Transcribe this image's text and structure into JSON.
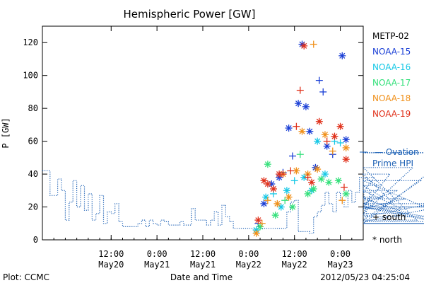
{
  "chart_data": {
    "type": "scatter",
    "title": "Hemispheric Power [GW]",
    "ylabel": "P [GW]",
    "xlabel": "Date and Time",
    "ylim": [
      0,
      130
    ],
    "yticks": [
      0,
      20,
      40,
      60,
      80,
      100,
      120
    ],
    "xlim": [
      "2012-05-19T18:00",
      "2012-05-23T06:00"
    ],
    "xticks": [
      {
        "t": "2012-05-20T12:00",
        "time": "12:00",
        "date": "May20"
      },
      {
        "t": "2012-05-21T00:00",
        "time": "0:00",
        "date": "May21"
      },
      {
        "t": "2012-05-21T12:00",
        "time": "12:00",
        "date": "May21"
      },
      {
        "t": "2012-05-22T00:00",
        "time": "0:00",
        "date": "May22"
      },
      {
        "t": "2012-05-22T12:00",
        "time": "12:00",
        "date": "May22"
      },
      {
        "t": "2012-05-23T00:00",
        "time": "0:00",
        "date": "May23"
      }
    ],
    "series": [
      {
        "name": "METP-02",
        "color": "#000000",
        "points": []
      },
      {
        "name": "NOAA-15",
        "color": "#1a3fd6",
        "points": [
          {
            "t": "2012-05-22T02:30",
            "v": 10,
            "m": "+"
          },
          {
            "t": "2012-05-22T04:00",
            "v": 22,
            "m": "*"
          },
          {
            "t": "2012-05-22T06:00",
            "v": 34,
            "m": "*"
          },
          {
            "t": "2012-05-22T08:00",
            "v": 38,
            "m": "*"
          },
          {
            "t": "2012-05-22T09:00",
            "v": 41,
            "m": "+"
          },
          {
            "t": "2012-05-22T10:30",
            "v": 68,
            "m": "*"
          },
          {
            "t": "2012-05-22T11:30",
            "v": 51,
            "m": "+"
          },
          {
            "t": "2012-05-22T13:00",
            "v": 83,
            "m": "*"
          },
          {
            "t": "2012-05-22T14:00",
            "v": 119,
            "m": "*"
          },
          {
            "t": "2012-05-22T15:00",
            "v": 81,
            "m": "*"
          },
          {
            "t": "2012-05-22T16:00",
            "v": 66,
            "m": "*"
          },
          {
            "t": "2012-05-22T17:30",
            "v": 44,
            "m": "*"
          },
          {
            "t": "2012-05-22T18:30",
            "v": 97,
            "m": "+"
          },
          {
            "t": "2012-05-22T19:30",
            "v": 90,
            "m": "+"
          },
          {
            "t": "2012-05-22T20:30",
            "v": 57,
            "m": "*"
          },
          {
            "t": "2012-05-22T22:00",
            "v": 52,
            "m": "+"
          },
          {
            "t": "2012-05-23T00:30",
            "v": 112,
            "m": "*"
          },
          {
            "t": "2012-05-23T01:30",
            "v": 61,
            "m": "*"
          }
        ]
      },
      {
        "name": "NOAA-16",
        "color": "#16c8e6",
        "points": [
          {
            "t": "2012-05-22T02:00",
            "v": 6,
            "m": "*"
          },
          {
            "t": "2012-05-22T04:30",
            "v": 26,
            "m": "*"
          },
          {
            "t": "2012-05-22T06:30",
            "v": 28,
            "m": "+"
          },
          {
            "t": "2012-05-22T08:30",
            "v": 20,
            "m": "*"
          },
          {
            "t": "2012-05-22T10:00",
            "v": 30,
            "m": "*"
          },
          {
            "t": "2012-05-22T12:00",
            "v": 36,
            "m": "+"
          },
          {
            "t": "2012-05-22T14:30",
            "v": 38,
            "m": "*"
          },
          {
            "t": "2012-05-22T16:30",
            "v": 30,
            "m": "*"
          },
          {
            "t": "2012-05-22T18:00",
            "v": 60,
            "m": "*"
          },
          {
            "t": "2012-05-22T20:00",
            "v": 40,
            "m": "*"
          },
          {
            "t": "2012-05-22T22:30",
            "v": 60,
            "m": "+"
          },
          {
            "t": "2012-05-23T00:00",
            "v": 59,
            "m": "+"
          }
        ]
      },
      {
        "name": "NOAA-17",
        "color": "#33e07a",
        "points": [
          {
            "t": "2012-05-22T03:00",
            "v": 8,
            "m": "*"
          },
          {
            "t": "2012-05-22T05:00",
            "v": 46,
            "m": "*"
          },
          {
            "t": "2012-05-22T07:00",
            "v": 15,
            "m": "*"
          },
          {
            "t": "2012-05-22T09:30",
            "v": 24,
            "m": "+"
          },
          {
            "t": "2012-05-22T11:30",
            "v": 20,
            "m": "*"
          },
          {
            "t": "2012-05-22T13:30",
            "v": 52,
            "m": "+"
          },
          {
            "t": "2012-05-22T15:30",
            "v": 28,
            "m": "*"
          },
          {
            "t": "2012-05-22T17:00",
            "v": 31,
            "m": "*"
          },
          {
            "t": "2012-05-22T19:00",
            "v": 37,
            "m": "*"
          },
          {
            "t": "2012-05-22T21:00",
            "v": 35,
            "m": "*"
          },
          {
            "t": "2012-05-22T23:30",
            "v": 36,
            "m": "*"
          },
          {
            "t": "2012-05-23T01:30",
            "v": 28,
            "m": "*"
          }
        ]
      },
      {
        "name": "NOAA-18",
        "color": "#f0901a",
        "points": [
          {
            "t": "2012-05-22T02:00",
            "v": 4,
            "m": "*"
          },
          {
            "t": "2012-05-22T03:30",
            "v": 10,
            "m": "+"
          },
          {
            "t": "2012-05-22T05:00",
            "v": 24,
            "m": "+"
          },
          {
            "t": "2012-05-22T07:30",
            "v": 22,
            "m": "*"
          },
          {
            "t": "2012-05-22T09:00",
            "v": 40,
            "m": "*"
          },
          {
            "t": "2012-05-22T10:30",
            "v": 26,
            "m": "*"
          },
          {
            "t": "2012-05-22T12:30",
            "v": 42,
            "m": "*"
          },
          {
            "t": "2012-05-22T14:00",
            "v": 66,
            "m": "*"
          },
          {
            "t": "2012-05-22T15:30",
            "v": 40,
            "m": "*"
          },
          {
            "t": "2012-05-22T17:00",
            "v": 119,
            "m": "+"
          },
          {
            "t": "2012-05-22T18:00",
            "v": 43,
            "m": "*"
          },
          {
            "t": "2012-05-22T20:00",
            "v": 64,
            "m": "*"
          },
          {
            "t": "2012-05-22T22:00",
            "v": 54,
            "m": "+"
          },
          {
            "t": "2012-05-23T00:30",
            "v": 24,
            "m": "+"
          },
          {
            "t": "2012-05-23T01:30",
            "v": 56,
            "m": "*"
          }
        ]
      },
      {
        "name": "NOAA-19",
        "color": "#e0301a",
        "points": [
          {
            "t": "2012-05-22T02:30",
            "v": 12,
            "m": "*"
          },
          {
            "t": "2012-05-22T04:00",
            "v": 36,
            "m": "*"
          },
          {
            "t": "2012-05-22T05:00",
            "v": 34,
            "m": "*"
          },
          {
            "t": "2012-05-22T06:30",
            "v": 31,
            "m": "*"
          },
          {
            "t": "2012-05-22T08:00",
            "v": 40,
            "m": "*"
          },
          {
            "t": "2012-05-22T09:00",
            "v": 40,
            "m": "+"
          },
          {
            "t": "2012-05-22T11:00",
            "v": 42,
            "m": "+"
          },
          {
            "t": "2012-05-22T12:30",
            "v": 69,
            "m": "+"
          },
          {
            "t": "2012-05-22T13:30",
            "v": 91,
            "m": "+"
          },
          {
            "t": "2012-05-22T14:30",
            "v": 118,
            "m": "*"
          },
          {
            "t": "2012-05-22T15:30",
            "v": 38,
            "m": "+"
          },
          {
            "t": "2012-05-22T16:30",
            "v": 35,
            "m": "*"
          },
          {
            "t": "2012-05-22T18:30",
            "v": 72,
            "m": "*"
          },
          {
            "t": "2012-05-22T20:30",
            "v": 60,
            "m": "+"
          },
          {
            "t": "2012-05-22T22:30",
            "v": 63,
            "m": "*"
          },
          {
            "t": "2012-05-23T00:00",
            "v": 69,
            "m": "*"
          },
          {
            "t": "2012-05-23T01:00",
            "v": 32,
            "m": "+"
          },
          {
            "t": "2012-05-23T01:30",
            "v": 49,
            "m": "*"
          }
        ]
      }
    ],
    "ovation": {
      "name": "Ovation Prime HPI",
      "color": "#1a5fb4",
      "values_hourly_from_2012-05-19T18:00": [
        42,
        42,
        27,
        27,
        37,
        30,
        12,
        23,
        36,
        20,
        33,
        18,
        28,
        12,
        16,
        27,
        10,
        17,
        16,
        22,
        11,
        8,
        8,
        8,
        8,
        10,
        12,
        8,
        12,
        10,
        9,
        12,
        11,
        9,
        9,
        9,
        11,
        9,
        9,
        19,
        12,
        12,
        12,
        9,
        12,
        17,
        9,
        21,
        14,
        11,
        7,
        7,
        7,
        7,
        7,
        7,
        7,
        7,
        7,
        7,
        7,
        7,
        7,
        7,
        17,
        23,
        24,
        5,
        5,
        5,
        4,
        14,
        17,
        21,
        29,
        22,
        17,
        29,
        24,
        20,
        30,
        23,
        29,
        38,
        30,
        15,
        29,
        38,
        33,
        26,
        20,
        40,
        22,
        30,
        19,
        25,
        16,
        44,
        12,
        36,
        20,
        14,
        22,
        11,
        20,
        10,
        10,
        10,
        53,
        53
      ]
    }
  },
  "legend": {
    "satellites": [
      {
        "label": "METP-02",
        "color": "#000000"
      },
      {
        "label": "NOAA-15",
        "color": "#1a3fd6"
      },
      {
        "label": "NOAA-16",
        "color": "#16c8e6"
      },
      {
        "label": "NOAA-17",
        "color": "#33e07a"
      },
      {
        "label": "NOAA-18",
        "color": "#f0901a"
      },
      {
        "label": "NOAA-19",
        "color": "#e0301a"
      }
    ],
    "ovation_line1": "— Ovation",
    "ovation_line2": "Prime HPI",
    "south_label": "+ south",
    "north_label": "* north"
  },
  "footer": {
    "credit": "Plot: CCMC",
    "timestamp": "2012/05/23 04:25:04"
  }
}
